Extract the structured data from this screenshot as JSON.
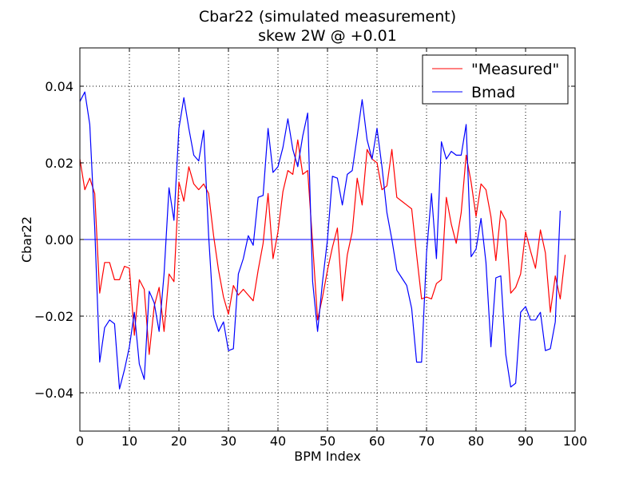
{
  "chart_data": {
    "type": "line",
    "title": "Cbar22 (simulated measurement)",
    "subtitle": "skew 2W @ +0.01",
    "xlabel": "BPM Index",
    "ylabel": "Cbar22",
    "xlim": [
      0,
      100
    ],
    "ylim": [
      -0.05,
      0.05
    ],
    "x_ticks": [
      0,
      10,
      20,
      30,
      40,
      50,
      60,
      70,
      80,
      90,
      100
    ],
    "y_ticks": [
      -0.04,
      -0.02,
      0.0,
      0.02,
      0.04
    ],
    "x_tick_labels": [
      "0",
      "10",
      "20",
      "30",
      "40",
      "50",
      "60",
      "70",
      "80",
      "90",
      "100"
    ],
    "y_tick_labels": [
      "−0.04",
      "−0.02",
      "0.00",
      "0.02",
      "0.04"
    ],
    "grid": true,
    "legend_position": "top-right",
    "zero_line_color": "#0000ff",
    "series": [
      {
        "name": "\"Measured\"",
        "color": "#ff0000",
        "values": [
          0.021,
          0.013,
          0.016,
          0.012,
          -0.014,
          -0.006,
          -0.006,
          -0.0105,
          -0.0105,
          -0.007,
          -0.0075,
          -0.025,
          -0.0105,
          -0.013,
          -0.03,
          -0.0175,
          -0.0125,
          -0.024,
          -0.009,
          -0.011,
          0.015,
          0.01,
          0.019,
          0.0145,
          0.013,
          0.0145,
          0.012,
          0.001,
          -0.008,
          -0.015,
          -0.0195,
          -0.012,
          -0.0145,
          -0.013,
          -0.0145,
          -0.016,
          -0.008,
          -0.001,
          0.012,
          -0.005,
          0.002,
          0.0125,
          0.018,
          0.017,
          0.026,
          0.017,
          0.018,
          -0.001,
          -0.021,
          -0.015,
          -0.008,
          -0.002,
          0.003,
          -0.016,
          -0.004,
          0.002,
          0.016,
          0.009,
          0.0235,
          0.021,
          0.02,
          0.013,
          0.014,
          0.0235,
          0.011,
          0.01,
          0.009,
          0.008,
          -0.004,
          -0.0155,
          -0.015,
          -0.0155,
          -0.0115,
          -0.0105,
          0.011,
          0.004,
          -0.001,
          0.007,
          0.022,
          0.015,
          0.006,
          0.0145,
          0.013,
          0.006,
          -0.0055,
          0.0075,
          0.005,
          -0.014,
          -0.0125,
          -0.009,
          0.002,
          -0.003,
          -0.0075,
          0.0025,
          -0.0035,
          -0.019,
          -0.0095,
          -0.0155,
          -0.004
        ]
      },
      {
        "name": "Bmad",
        "color": "#0000ff",
        "values": [
          0.036,
          0.0385,
          0.03,
          0.003,
          -0.032,
          -0.023,
          -0.021,
          -0.022,
          -0.039,
          -0.034,
          -0.028,
          -0.019,
          -0.0325,
          -0.0365,
          -0.0135,
          -0.0165,
          -0.024,
          -0.009,
          0.0135,
          0.005,
          0.029,
          0.037,
          0.029,
          0.022,
          0.0205,
          0.0285,
          0.001,
          -0.02,
          -0.024,
          -0.0215,
          -0.029,
          -0.0285,
          -0.009,
          -0.005,
          0.001,
          -0.0015,
          0.011,
          0.0115,
          0.029,
          0.0175,
          0.019,
          0.024,
          0.0315,
          0.0235,
          0.019,
          0.027,
          0.033,
          -0.011,
          -0.024,
          -0.011,
          0.0,
          0.0165,
          0.016,
          0.009,
          0.017,
          0.018,
          0.027,
          0.0365,
          0.026,
          0.021,
          0.029,
          0.019,
          0.007,
          0.0,
          -0.008,
          -0.01,
          -0.012,
          -0.018,
          -0.032,
          -0.032,
          -0.0035,
          0.012,
          -0.005,
          0.0255,
          0.021,
          0.023,
          0.022,
          0.022,
          0.03,
          -0.0045,
          -0.0025,
          0.0055,
          -0.006,
          -0.028,
          -0.01,
          -0.0095,
          -0.03,
          -0.0385,
          -0.0375,
          -0.019,
          -0.0175,
          -0.021,
          -0.021,
          -0.019,
          -0.029,
          -0.0285,
          -0.0215,
          0.0075
        ]
      }
    ]
  }
}
